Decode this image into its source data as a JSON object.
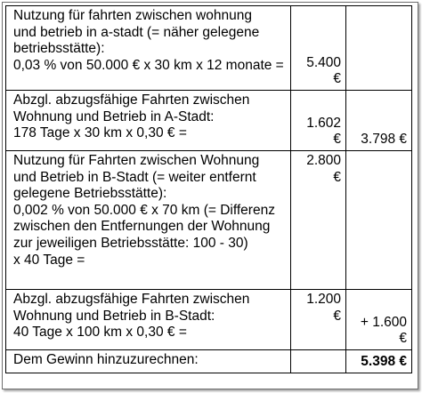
{
  "rows": [
    {
      "lines": [
        "Nutzung für fahrten zwischen wohnung",
        "und betrieb in a-stadt (= näher gelegene",
        "betriebsstätte):",
        "0,03 % von 50.000 € x 30 km x 12 monate ="
      ],
      "amount": "5.400 €",
      "result": ""
    },
    {
      "lines": [
        "Abzgl. abzugsfähige Fahrten zwischen",
        "Wohnung und Betrieb in A-Stadt:",
        "178 Tage x 30 km x 0,30 € ="
      ],
      "amount": "1.602 €",
      "result": "3.798 €"
    },
    {
      "lines": [
        "Nutzung für Fahrten zwischen Wohnung",
        "und Betrieb in B-Stadt (= weiter entfernt",
        "gelegene Betriebsstätte):",
        "0,002 % von 50.000 € x 70 km (= Differenz",
        "zwischen den Entfernungen der Wohnung",
        "zur jeweiligen Betriebsstätte: 100 - 30)",
        "x 40 Tage ="
      ],
      "amount": "2.800 €",
      "result": ""
    },
    {
      "lines": [
        "Abzgl. abzugsfähige Fahrten zwischen",
        "Wohnung und Betrieb in B-Stadt:",
        "40 Tage x 100 km x 0,30  € ="
      ],
      "amount": "1.200 €",
      "result": "+ 1.600 €"
    },
    {
      "lines": [
        "Dem Gewinn hinzuzurechnen:"
      ],
      "amount": "",
      "result": "5.398 €"
    }
  ]
}
